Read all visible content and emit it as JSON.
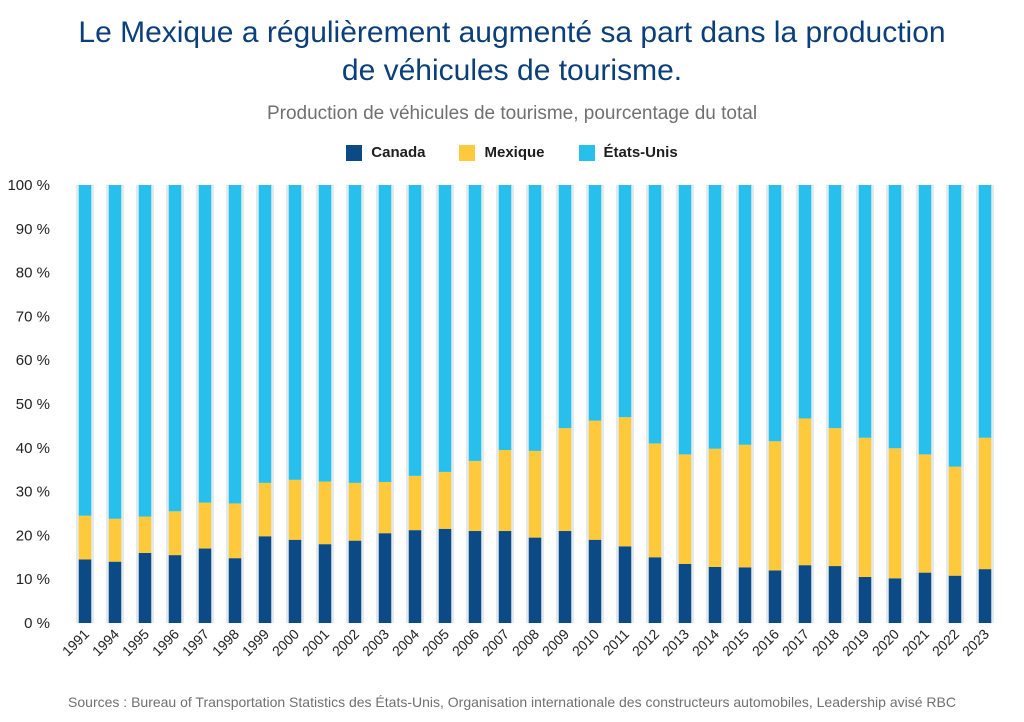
{
  "title_line1": "Le Mexique a régulièrement augmenté sa part dans la production",
  "title_line2": "de véhicules de tourisme.",
  "subtitle": "Production de véhicules de tourisme, pourcentage du total",
  "source": "Sources : Bureau of Transportation Statistics des États-Unis, Organisation internationale des constructeurs automobiles, Leadership avisé RBC",
  "colors": {
    "canada": "#0b4a85",
    "mexique": "#fec93a",
    "etats_unis": "#27bfeb",
    "background_col": "#e3eaee"
  },
  "chart_data": {
    "type": "bar",
    "stacked": true,
    "categories": [
      "1991",
      "1994",
      "1995",
      "1996",
      "1997",
      "1998",
      "1999",
      "2000",
      "2001",
      "2002",
      "2003",
      "2004",
      "2005",
      "2006",
      "2007",
      "2008",
      "2009",
      "2010",
      "2011",
      "2012",
      "2013",
      "2014",
      "2015",
      "2016",
      "2017",
      "2018",
      "2019",
      "2020",
      "2021",
      "2022",
      "2023"
    ],
    "ylim": [
      0,
      100
    ],
    "yticks": [
      0,
      10,
      20,
      30,
      40,
      50,
      60,
      70,
      80,
      90,
      100
    ],
    "ytick_labels": [
      "0 %",
      "10 %",
      "20 %",
      "30 %",
      "40 %",
      "50 %",
      "60 %",
      "70 %",
      "80 %",
      "90 %",
      "100 %"
    ],
    "legend_position": "top-center",
    "series": [
      {
        "name": "Canada",
        "values": [
          14.5,
          14,
          16,
          15.5,
          17,
          14.8,
          19.8,
          19,
          18,
          18.8,
          20.5,
          21.2,
          21.5,
          21,
          21,
          19.5,
          21,
          19,
          17.5,
          15,
          13.5,
          12.8,
          12.7,
          12,
          13.2,
          13,
          10.5,
          10.2,
          11.5,
          10.8,
          12.3
        ]
      },
      {
        "name": "Mexique",
        "values": [
          10,
          9.8,
          8.3,
          10,
          10.5,
          12.5,
          12.2,
          13.7,
          14.3,
          13.2,
          11.7,
          12.4,
          13,
          16,
          18.5,
          19.8,
          23.5,
          27.2,
          29.5,
          26,
          25,
          27,
          28,
          29.5,
          33.5,
          31.5,
          31.8,
          29.7,
          27,
          24.9,
          30
        ]
      },
      {
        "name": "États-Unis",
        "values": [
          75.5,
          76.2,
          75.7,
          74.5,
          72.5,
          72.7,
          68,
          67.3,
          67.7,
          68,
          67.8,
          66.4,
          65.5,
          63,
          60.5,
          60.7,
          55.5,
          53.8,
          53,
          59,
          61.5,
          60.2,
          59.3,
          58.5,
          53.3,
          55.5,
          57.7,
          60.1,
          61.5,
          64.3,
          57.7
        ]
      }
    ]
  },
  "legend": {
    "canada": "Canada",
    "mexique": "Mexique",
    "etats_unis": "États-Unis"
  }
}
